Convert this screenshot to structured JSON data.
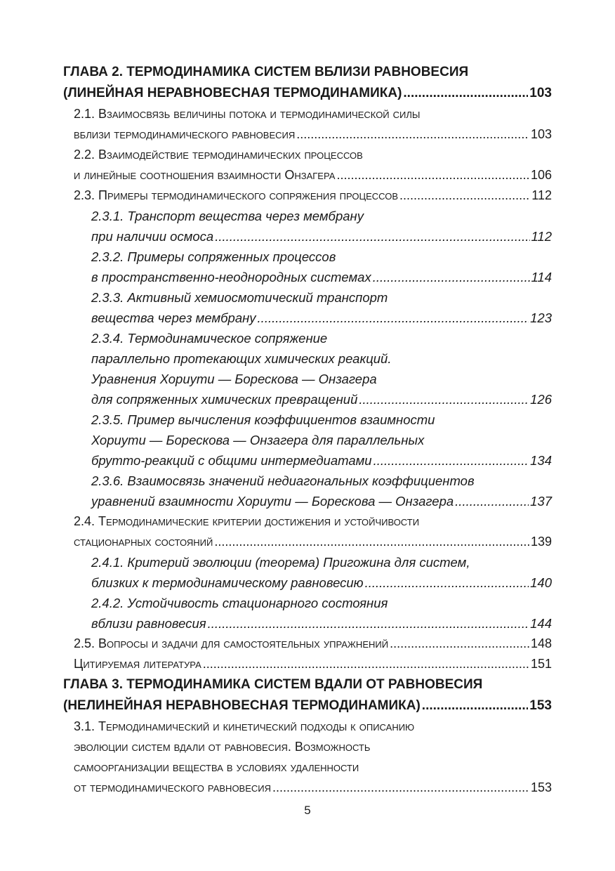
{
  "entries": [
    {
      "type": "chapter",
      "lines": [
        "ГЛАВА 2. ТЕРМОДИНАМИКА СИСТЕМ ВБЛИЗИ РАВНОВЕСИЯ",
        "(ЛИНЕЙНАЯ НЕРАВНОВЕСНАЯ ТЕРМОДИНАМИКА)"
      ],
      "page": "103"
    },
    {
      "type": "section",
      "lines": [
        "2.1. Взаимосвязь величины потока и термодинамической силы",
        "вблизи термодинамического равновесия"
      ],
      "page": "103"
    },
    {
      "type": "section",
      "lines": [
        "2.2. Взаимодействие термодинамических процессов",
        "и линейные соотношения взаимности Онзагера"
      ],
      "page": "106"
    },
    {
      "type": "section",
      "lines": [
        "2.3. Примеры термодинамического сопряжения процессов"
      ],
      "page": "112"
    },
    {
      "type": "sub",
      "lines": [
        "2.3.1. Транспорт вещества через мембрану",
        "при наличии осмоса"
      ],
      "page": "112"
    },
    {
      "type": "sub",
      "lines": [
        "2.3.2. Примеры сопряженных процессов",
        "в пространственно-неоднородных системах"
      ],
      "page": "114"
    },
    {
      "type": "sub",
      "lines": [
        "2.3.3. Активный хемиосмотический транспорт",
        "вещества через мембрану"
      ],
      "page": "123"
    },
    {
      "type": "sub",
      "lines": [
        "2.3.4. Термодинамическое сопряжение",
        "параллельно протекающих химических реакций.",
        "Уравнения Хориути — Борескова — Онзагера",
        "для сопряженных химических превращений"
      ],
      "page": "126"
    },
    {
      "type": "sub",
      "lines": [
        "2.3.5. Пример вычисления коэффициентов взаимности",
        "Хориути — Борескова — Онзагера для параллельных",
        "брутто-реакций с общими интермедиатами"
      ],
      "page": "134"
    },
    {
      "type": "sub",
      "lines": [
        "2.3.6. Взаимосвязь значений недиагональных коэффициентов",
        "уравнений взаимности Хориути — Борескова — Онзагера"
      ],
      "page": "137"
    },
    {
      "type": "section",
      "lines": [
        "2.4. Термодинамические критерии достижения и устойчивости",
        "стационарных состояний"
      ],
      "page": "139"
    },
    {
      "type": "sub",
      "lines": [
        "2.4.1. Критерий эволюции (теорема) Пригожина для систем,",
        "близких к термодинамическому равновесию"
      ],
      "page": "140"
    },
    {
      "type": "sub",
      "lines": [
        "2.4.2. Устойчивость стационарного состояния",
        "вблизи равновесия"
      ],
      "page": "144"
    },
    {
      "type": "section",
      "lines": [
        "2.5. Вопросы и задачи для самостоятельных упражнений"
      ],
      "page": "148"
    },
    {
      "type": "section",
      "lines": [
        "Цитируемая литература"
      ],
      "page": "151"
    },
    {
      "type": "chapter",
      "lines": [
        "ГЛАВА 3. ТЕРМОДИНАМИКА СИСТЕМ ВДАЛИ ОТ РАВНОВЕСИЯ",
        "(НЕЛИНЕЙНАЯ НЕРАВНОВЕСНАЯ ТЕРМОДИНАМИКА)"
      ],
      "page": "153"
    },
    {
      "type": "section",
      "lines": [
        "3.1. Термодинамический и кинетический подходы к описанию",
        "эволюции систем вдали от равновесия. Возможность",
        "самоорганизации вещества в условиях удаленности",
        "от термодинамического равновесия"
      ],
      "page": "153"
    }
  ],
  "page_number": "5"
}
